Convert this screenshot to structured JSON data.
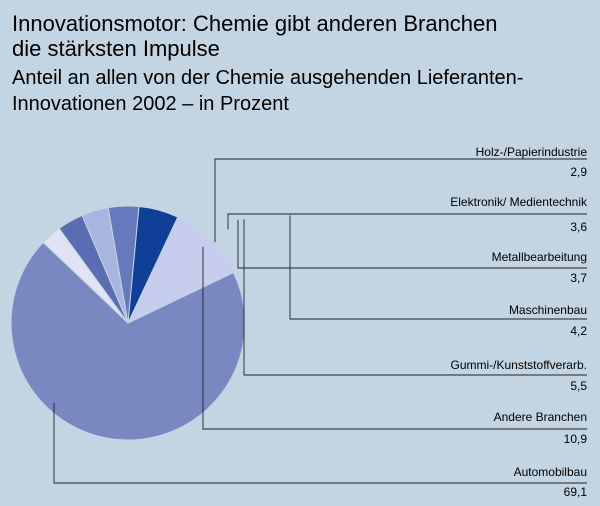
{
  "chart_data": {
    "type": "pie",
    "title_lines": [
      "Innovationsmotor: Chemie gibt anderen Branchen",
      "die stärksten Impulse"
    ],
    "subtitle_lines": [
      "Anteil an allen von der Chemie ausgehenden Lieferanten-",
      "Innovationen 2002 – in Prozent"
    ],
    "slices": [
      {
        "name": "Holz-/Papierindustrie",
        "value": 2.9,
        "value_label": "2,9",
        "color": "#dfe3f3"
      },
      {
        "name": "Elektronik/ Medientechnik",
        "value": 3.6,
        "value_label": "3,6",
        "color": "#5a6db3"
      },
      {
        "name": "Metallbearbeitung",
        "value": 3.7,
        "value_label": "3,7",
        "color": "#a9b5de"
      },
      {
        "name": "Maschinenbau",
        "value": 4.2,
        "value_label": "4,2",
        "color": "#6579bc"
      },
      {
        "name": "Gummi-/Kunststoffverarb.",
        "value": 5.5,
        "value_label": "5,5",
        "color": "#0f3f96"
      },
      {
        "name": "Andere Branchen",
        "value": 10.9,
        "value_label": "10,9",
        "color": "#c7cdec"
      },
      {
        "name": "Automobilbau",
        "value": 69.1,
        "value_label": "69,1",
        "color": "#7a88c2"
      }
    ]
  }
}
